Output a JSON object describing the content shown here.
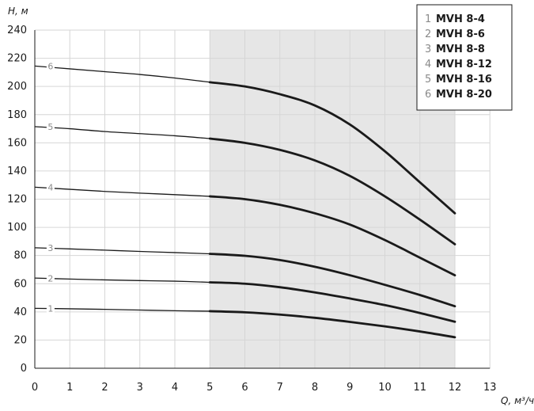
{
  "chart_data": {
    "type": "line",
    "xlabel": "Q, м³/ч",
    "ylabel": "H, м",
    "xlim": [
      0,
      13
    ],
    "ylim": [
      0,
      240
    ],
    "x_ticks": [
      0,
      1,
      2,
      3,
      4,
      5,
      6,
      7,
      8,
      9,
      10,
      11,
      12,
      13
    ],
    "y_ticks": [
      0,
      20,
      40,
      60,
      80,
      100,
      120,
      140,
      160,
      180,
      200,
      220,
      240
    ],
    "grid": true,
    "highlight_range": [
      5,
      12
    ],
    "legend_position": "top-right",
    "colors": {
      "curve": "#1a1a1a",
      "grid": "#d6d6d6",
      "highlight": "#e6e6e6",
      "number": "#8a8a8a"
    },
    "series": [
      {
        "number": "1",
        "name": "MVH 8-4",
        "x": [
          0,
          1,
          2,
          3,
          4,
          5,
          6,
          7,
          8,
          9,
          10,
          11,
          12
        ],
        "values": [
          42.5,
          42.2,
          41.8,
          41.3,
          40.8,
          40.5,
          39.7,
          38.1,
          35.8,
          32.9,
          29.7,
          26.1,
          22
        ]
      },
      {
        "number": "2",
        "name": "MVH 8-6",
        "x": [
          0,
          1,
          2,
          3,
          4,
          5,
          6,
          7,
          8,
          9,
          10,
          11,
          12
        ],
        "values": [
          64,
          63.3,
          62.7,
          62.2,
          61.8,
          61,
          60,
          57.5,
          53.8,
          49.5,
          44.8,
          39.2,
          33
        ]
      },
      {
        "number": "3",
        "name": "MVH 8-8",
        "x": [
          0,
          1,
          2,
          3,
          4,
          5,
          6,
          7,
          8,
          9,
          10,
          11,
          12
        ],
        "values": [
          85.5,
          84.7,
          83.8,
          82.9,
          82.1,
          81.2,
          79.8,
          76.8,
          72,
          66,
          59.2,
          52,
          44
        ]
      },
      {
        "number": "4",
        "name": "MVH 8-12",
        "x": [
          0,
          1,
          2,
          3,
          4,
          5,
          6,
          7,
          8,
          9,
          10,
          11,
          12
        ],
        "values": [
          128.5,
          127,
          125.5,
          124.3,
          123.2,
          122,
          120,
          116,
          110,
          102,
          91,
          78.5,
          66
        ]
      },
      {
        "number": "5",
        "name": "MVH 8-16",
        "x": [
          0,
          1,
          2,
          3,
          4,
          5,
          6,
          7,
          8,
          9,
          10,
          11,
          12
        ],
        "values": [
          171.5,
          170,
          168,
          166.5,
          165,
          163,
          160,
          155,
          147.5,
          136.5,
          122,
          105.5,
          88
        ]
      },
      {
        "number": "6",
        "name": "MVH 8-20",
        "x": [
          0,
          1,
          2,
          3,
          4,
          5,
          6,
          7,
          8,
          9,
          10,
          11,
          12
        ],
        "values": [
          214.5,
          212.5,
          210.5,
          208.5,
          206,
          203,
          200,
          194.5,
          186.5,
          173,
          154,
          132,
          110
        ]
      }
    ]
  }
}
